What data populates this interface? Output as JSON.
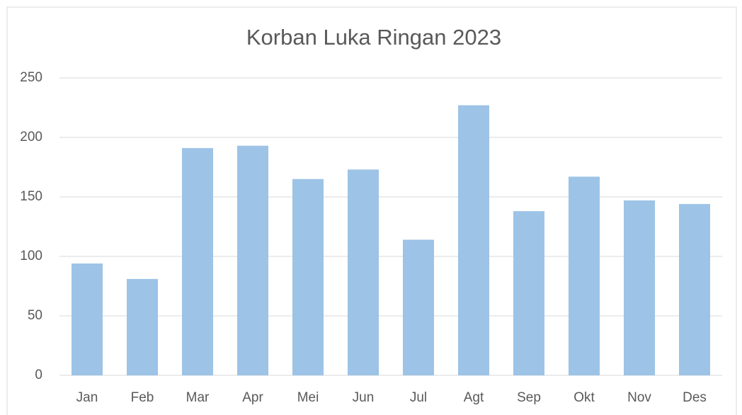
{
  "chart_data": {
    "type": "bar",
    "title": "Korban Luka Ringan 2023",
    "categories": [
      "Jan",
      "Feb",
      "Mar",
      "Apr",
      "Mei",
      "Jun",
      "Jul",
      "Agt",
      "Sep",
      "Okt",
      "Nov",
      "Des"
    ],
    "values": [
      94,
      81,
      191,
      193,
      165,
      173,
      114,
      227,
      138,
      167,
      147,
      144
    ],
    "color": "#9dc3e6",
    "ylim": [
      0,
      250
    ],
    "yticks": [
      0,
      50,
      100,
      150,
      200,
      250
    ],
    "grid": true
  }
}
